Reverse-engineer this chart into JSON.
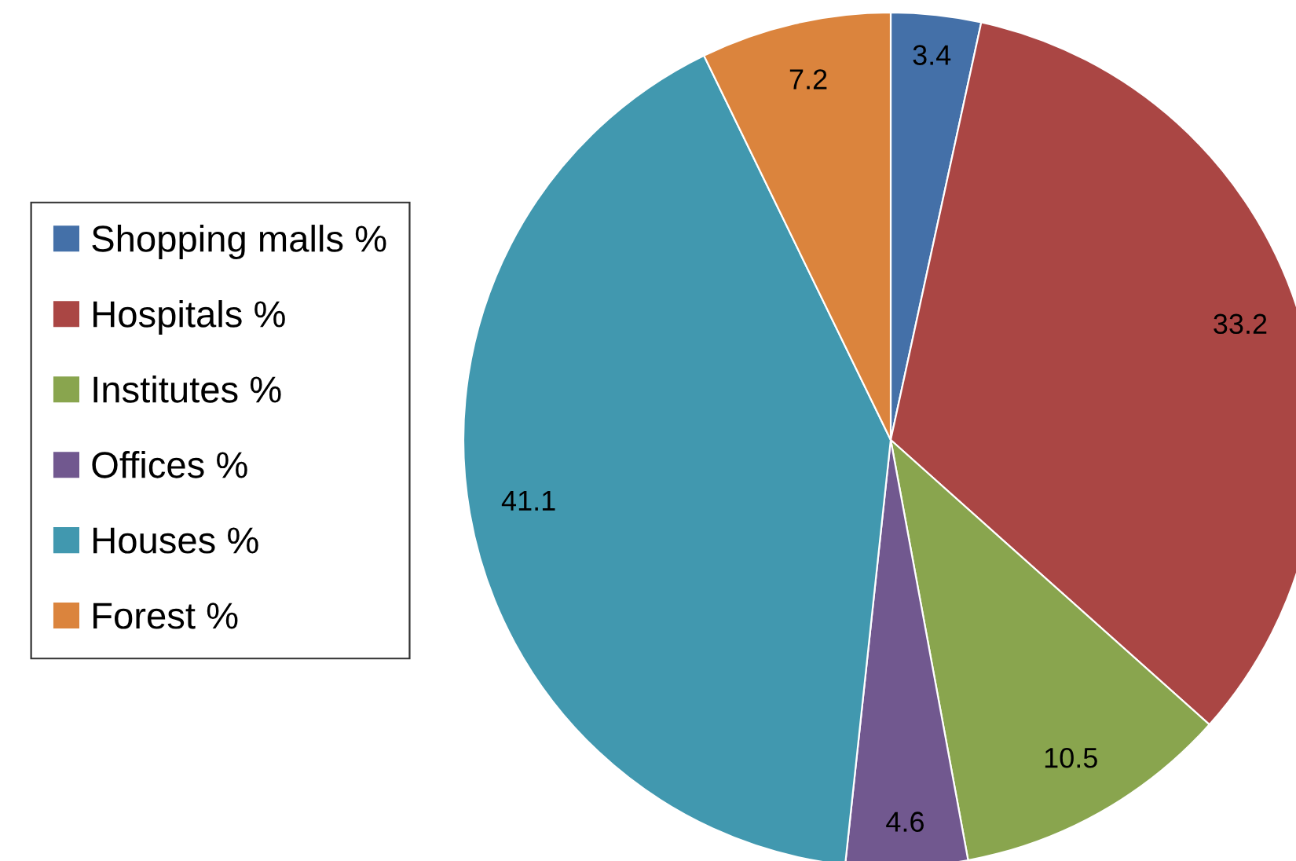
{
  "chart_data": {
    "type": "pie",
    "categories": [
      "Shopping malls %",
      "Hospitals %",
      "Institutes %",
      "Offices %",
      "Houses %",
      "Forest %"
    ],
    "values": [
      3.4,
      33.2,
      10.5,
      4.6,
      41.1,
      7.2
    ],
    "colors": [
      "#4470a8",
      "#aa4644",
      "#89a54e",
      "#71588f",
      "#4198af",
      "#db843d"
    ],
    "data_labels": true,
    "legend": "left"
  }
}
